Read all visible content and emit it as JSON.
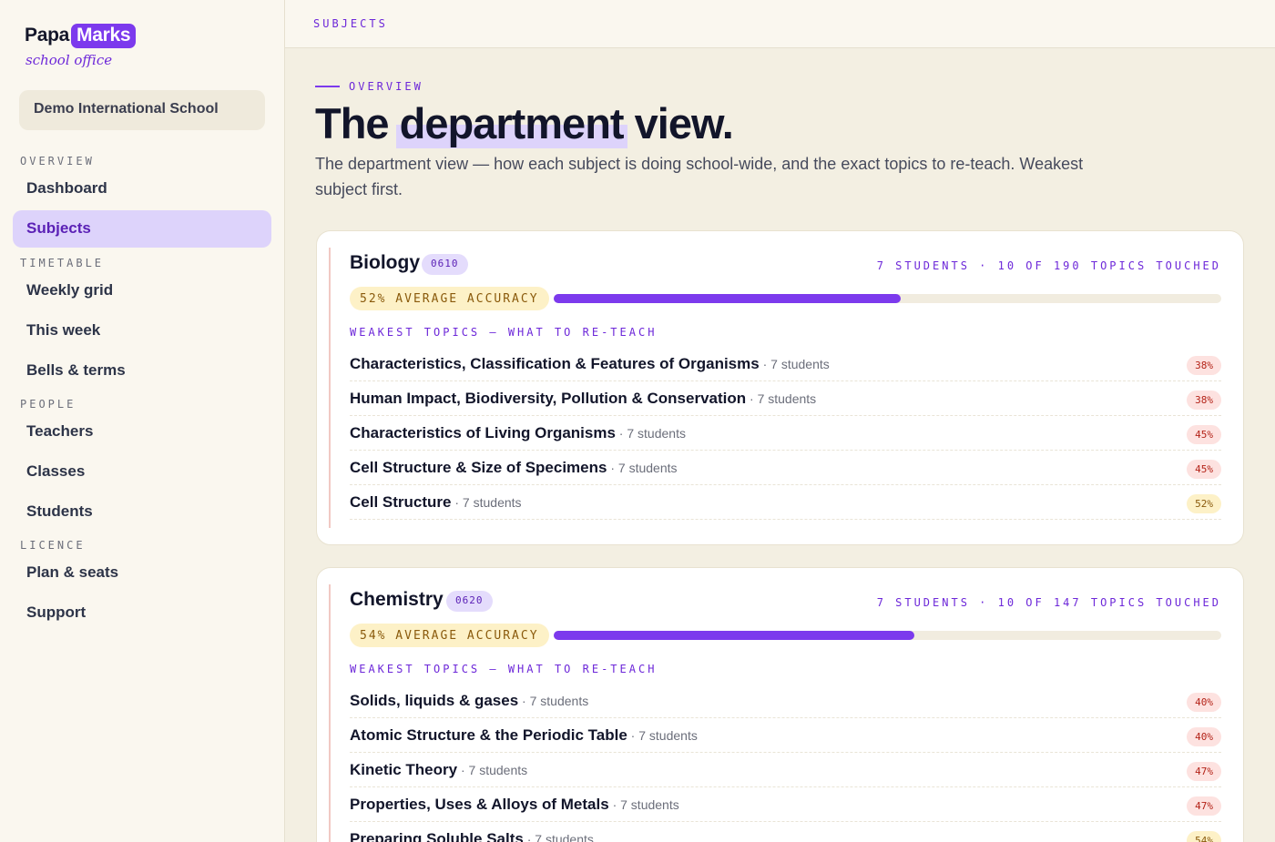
{
  "logo": {
    "part1": "Papa",
    "part2": "Marks",
    "sub": "school office"
  },
  "school": "Demo International School",
  "nav": {
    "sections": [
      {
        "label": "OVERVIEW",
        "items": [
          "Dashboard",
          "Subjects"
        ]
      },
      {
        "label": "TIMETABLE",
        "items": [
          "Weekly grid",
          "This week",
          "Bells & terms"
        ]
      },
      {
        "label": "PEOPLE",
        "items": [
          "Teachers",
          "Classes",
          "Students"
        ]
      },
      {
        "label": "LICENCE",
        "items": [
          "Plan & seats",
          "Support"
        ]
      }
    ],
    "active": "Subjects"
  },
  "topbar": {
    "crumb": "SUBJECTS"
  },
  "hero": {
    "eyebrow": "OVERVIEW",
    "title_pre": "The",
    "title_hl": "department",
    "title_post": "view.",
    "desc": "The department view — how each subject is doing school-wide, and the exact topics to re-teach. Weakest subject first."
  },
  "subjects": [
    {
      "name": "Biology",
      "code": "0610",
      "meta": "7 STUDENTS · 10 OF 190 TOPICS TOUCHED",
      "accuracy_label": "52% AVERAGE ACCURACY",
      "accuracy": 0.52,
      "weak_label": "WEAKEST TOPICS — WHAT TO RE-TEACH",
      "topics": [
        {
          "name": "Characteristics, Classification & Features of Organisms",
          "count": " · 7 students",
          "pct": "38%",
          "level": "low"
        },
        {
          "name": "Human Impact, Biodiversity, Pollution & Conservation",
          "count": " · 7 students",
          "pct": "38%",
          "level": "low"
        },
        {
          "name": "Characteristics of Living Organisms",
          "count": " · 7 students",
          "pct": "45%",
          "level": "low"
        },
        {
          "name": "Cell Structure & Size of Specimens",
          "count": " · 7 students",
          "pct": "45%",
          "level": "low"
        },
        {
          "name": "Cell Structure",
          "count": " · 7 students",
          "pct": "52%",
          "level": "mid"
        }
      ]
    },
    {
      "name": "Chemistry",
      "code": "0620",
      "meta": "7 STUDENTS · 10 OF 147 TOPICS TOUCHED",
      "accuracy_label": "54% AVERAGE ACCURACY",
      "accuracy": 0.54,
      "weak_label": "WEAKEST TOPICS — WHAT TO RE-TEACH",
      "topics": [
        {
          "name": "Solids, liquids & gases",
          "count": " · 7 students",
          "pct": "40%",
          "level": "low"
        },
        {
          "name": "Atomic Structure & the Periodic Table",
          "count": " · 7 students",
          "pct": "40%",
          "level": "low"
        },
        {
          "name": "Kinetic Theory",
          "count": " · 7 students",
          "pct": "47%",
          "level": "low"
        },
        {
          "name": "Properties, Uses & Alloys of Metals",
          "count": " · 7 students",
          "pct": "47%",
          "level": "low"
        },
        {
          "name": "Preparing Soluble Salts",
          "count": " · 7 students",
          "pct": "54%",
          "level": "mid"
        }
      ]
    }
  ]
}
